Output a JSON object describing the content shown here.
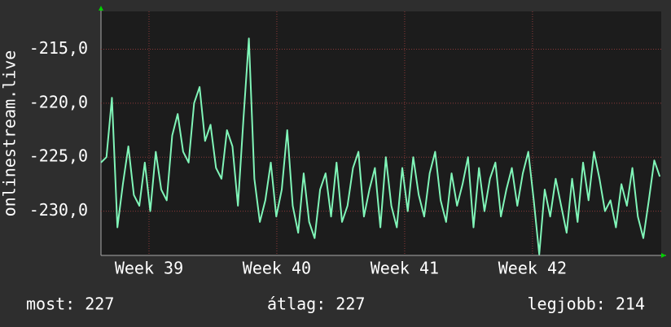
{
  "chart_data": {
    "type": "line",
    "y_label": "onlinestream.live",
    "x": [
      0,
      0.3,
      0.6,
      0.9,
      1.2,
      1.5,
      1.8,
      2.1,
      2.4,
      2.7,
      3,
      3.3,
      3.6,
      3.9,
      4.2,
      4.5,
      4.8,
      5.1,
      5.4,
      5.7,
      6,
      6.3,
      6.6,
      6.9,
      7.2,
      7.5,
      7.8,
      8.1,
      8.4,
      8.7,
      9,
      9.3,
      9.6,
      9.9,
      10.2,
      10.5,
      10.8,
      11.1,
      11.4,
      11.7,
      12,
      12.3,
      12.6,
      12.9,
      13.2,
      13.5,
      13.8,
      14.1,
      14.4,
      14.7,
      15,
      15.3,
      15.6,
      15.9,
      16.2,
      16.5,
      16.8,
      17.1,
      17.4,
      17.7,
      18,
      18.3,
      18.6,
      18.9,
      19.2,
      19.5,
      19.8,
      20.1,
      20.4,
      20.7,
      21,
      21.3,
      21.6,
      21.9,
      22.2,
      22.5,
      22.8,
      23.1,
      23.4,
      23.7,
      24,
      24.3,
      24.6,
      24.9,
      25.2,
      25.5,
      25.8,
      26.1,
      26.4,
      26.7,
      27,
      27.3,
      27.6,
      27.9,
      28.2,
      28.5,
      28.8,
      29.1,
      29.4,
      29.7,
      30,
      30.3,
      30.6
    ],
    "series": [
      {
        "name": "onlinestream.live",
        "color": "#80f5b8",
        "values": [
          -225.5,
          -225,
          -219.5,
          -231.5,
          -227.5,
          -224,
          -228.5,
          -229.5,
          -225.5,
          -230,
          -224.5,
          -228,
          -229,
          -223,
          -221,
          -224.5,
          -225.5,
          -220,
          -218.5,
          -223.5,
          -222,
          -226,
          -227,
          -222.5,
          -224,
          -229.5,
          -221.5,
          -214,
          -227,
          -231,
          -229,
          -225.5,
          -230.5,
          -228,
          -222.5,
          -229.5,
          -232,
          -226.5,
          -231,
          -232.5,
          -228,
          -226.5,
          -230.5,
          -225.5,
          -231,
          -229.5,
          -226,
          -224.5,
          -230.5,
          -228,
          -226,
          -231.5,
          -225,
          -229.5,
          -231.5,
          -226,
          -230,
          -225,
          -228.5,
          -230.5,
          -226.5,
          -224.5,
          -229,
          -231,
          -226.5,
          -229.5,
          -227.5,
          -225,
          -231.5,
          -226,
          -230,
          -227,
          -225.5,
          -230.5,
          -228,
          -226,
          -229.5,
          -226.5,
          -224.5,
          -229,
          -234,
          -228,
          -230.5,
          -227,
          -229.5,
          -232,
          -227,
          -231,
          -225.5,
          -229,
          -224.5,
          -227,
          -230,
          -229,
          -231.5,
          -227.5,
          -229.5,
          -226,
          -230.5,
          -232.5,
          -229,
          -225.3,
          -226.8
        ]
      }
    ],
    "xlim": [
      0,
      30.68
    ],
    "xticks": [
      {
        "value": 2.63,
        "label": "Week 39"
      },
      {
        "value": 9.63,
        "label": "Week 40"
      },
      {
        "value": 16.63,
        "label": "Week 41"
      },
      {
        "value": 23.63,
        "label": "Week 42"
      }
    ],
    "ylim": [
      -234.1,
      -211.5
    ],
    "yticks": [
      {
        "value": -230,
        "label": "-230,0"
      },
      {
        "value": -225,
        "label": "-225,0"
      },
      {
        "value": -220,
        "label": "-220,0"
      },
      {
        "value": -215,
        "label": "-215,0"
      }
    ],
    "grid": true,
    "legend": [
      "most: 227",
      "átlag: 227",
      "legjobb: 214"
    ]
  }
}
